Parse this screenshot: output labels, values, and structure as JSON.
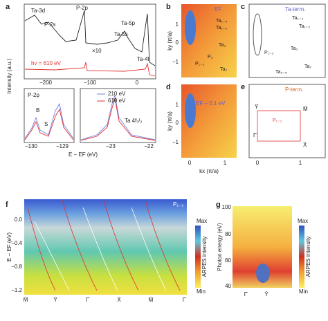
{
  "a": {
    "label": "a",
    "peaks": [
      "Ta-3d",
      "P-2s",
      "P-2p",
      "Ta-5p",
      "Ta-5s",
      "Ta-4f"
    ],
    "scale": "×10",
    "energy": "hν = 610 eV",
    "ylabel": "Intensity (a.u.)",
    "xticks": [
      "−200",
      "−100",
      "0"
    ],
    "inset1": {
      "title": "P-2p",
      "markers": [
        "B",
        "S"
      ],
      "xticks": [
        "−130",
        "−129"
      ]
    },
    "inset2": {
      "legend": [
        "210 eV",
        "610 eV"
      ],
      "title": "Ta 4f₇/₂",
      "xticks": [
        "−23",
        "−22"
      ]
    },
    "xlabel": "E − EF (eV)"
  },
  "b": {
    "label": "b",
    "title": "EF",
    "annotations": [
      "Ta₁₋₄",
      "Ta₁₋₂",
      "Ta₃",
      "Ta₂",
      "P₁₋₂",
      "P₃"
    ],
    "ylabel": "ky (π/a)",
    "yticks": [
      "1",
      "0",
      "−1"
    ]
  },
  "c": {
    "label": "c",
    "title": "Ta-term.",
    "annotations": [
      "Ta₁₋₄",
      "Ta₁₋₂",
      "Ta₃",
      "P₁₋₂",
      "Ta₃₋₅",
      "Ta₂"
    ]
  },
  "d": {
    "label": "d",
    "title": "EF − 0.1 eV",
    "ylabel": "ky (π/a)",
    "yticks": [
      "1",
      "0",
      "−1"
    ],
    "xticks": [
      "0",
      "1"
    ],
    "xlabel": "kx (π/a)"
  },
  "e": {
    "label": "e",
    "title": "P-term.",
    "points": [
      "Ȳ",
      "M̄",
      "Γ̄",
      "X̄"
    ],
    "annotation": "P₁₋₂",
    "xticks": [
      "0",
      "1"
    ]
  },
  "f": {
    "label": "f",
    "ylabel": "E − EF (eV)",
    "yticks": [
      "0.0",
      "−0.4",
      "−0.8",
      "−1.2"
    ],
    "xticks": [
      "M̄",
      "Ȳ",
      "Γ̄",
      "X̄",
      "M̄",
      "Γ̄"
    ],
    "annotation": "P₁₋₂",
    "colorbar": {
      "max": "Max",
      "label": "ARPES intensity",
      "min": "Min"
    }
  },
  "g": {
    "label": "g",
    "ylabel": "Photon energy (eV)",
    "yticks": [
      "100",
      "80",
      "60",
      "40"
    ],
    "xticks": [
      "Γ̄",
      "Ȳ"
    ],
    "colorbar": {
      "max": "Max",
      "label": "ARPES intensity",
      "min": "Min"
    }
  }
}
